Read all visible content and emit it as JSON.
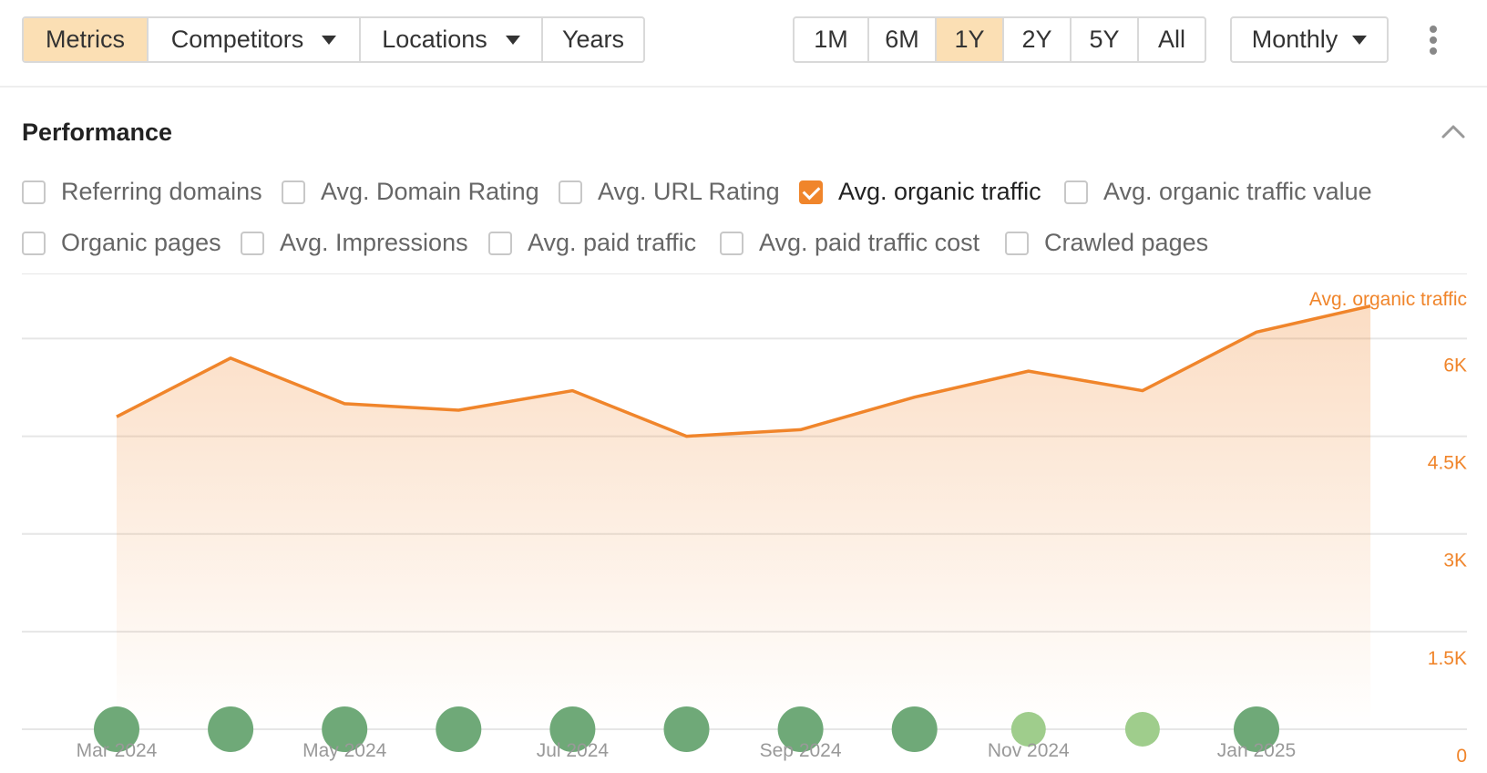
{
  "toolbar": {
    "left_group": [
      {
        "label": "Metrics",
        "active": true
      },
      {
        "label": "Competitors",
        "dropdown": true
      },
      {
        "label": "Locations",
        "dropdown": true
      },
      {
        "label": "Years"
      }
    ],
    "ranges": [
      "1M",
      "6M",
      "1Y",
      "2Y",
      "5Y",
      "All"
    ],
    "active_range": "1Y",
    "interval": "Monthly",
    "more_icon": "more-vertical-icon"
  },
  "section": {
    "title": "Performance",
    "collapse_icon": "chevron-up-icon"
  },
  "metrics": {
    "row1": [
      {
        "label": "Referring domains",
        "checked": false
      },
      {
        "label": "Avg. Domain Rating",
        "checked": false
      },
      {
        "label": "Avg. URL Rating",
        "checked": false
      },
      {
        "label": "Avg. organic traffic",
        "checked": true
      },
      {
        "label": "Avg. organic traffic value",
        "checked": false
      }
    ],
    "row2": [
      {
        "label": "Organic pages",
        "checked": false
      },
      {
        "label": "Avg. Impressions",
        "checked": false
      },
      {
        "label": "Avg. paid traffic",
        "checked": false
      },
      {
        "label": "Avg. paid traffic cost",
        "checked": false
      },
      {
        "label": "Crawled pages",
        "checked": false
      }
    ]
  },
  "colors": {
    "accent": "#f0852b",
    "active_button": "#fbdfb4",
    "dot_dark": "#6fa978",
    "dot_light": "#9fcd8c",
    "grid": "#e6e6e6"
  },
  "chart_data": {
    "type": "area",
    "series": [
      {
        "name": "Avg. organic traffic",
        "values": [
          4800,
          5700,
          5000,
          4900,
          5200,
          4500,
          4600,
          5100,
          5500,
          5200,
          6100,
          6500
        ]
      }
    ],
    "x_labels": [
      "Mar 2024",
      "May 2024",
      "Jul 2024",
      "Sep 2024",
      "Nov 2024",
      "Jan 2025"
    ],
    "y_axis_title": "Avg. organic traffic",
    "y_ticks": [
      "0",
      "1.5K",
      "3K",
      "4.5K",
      "6K"
    ],
    "ylim": [
      0,
      7000
    ],
    "y_axis_position": "right",
    "grid": true,
    "annotation_dots": [
      {
        "month": 0,
        "shade": "dark",
        "size": "large"
      },
      {
        "month": 1,
        "shade": "dark",
        "size": "large"
      },
      {
        "month": 2,
        "shade": "dark",
        "size": "large"
      },
      {
        "month": 3,
        "shade": "dark",
        "size": "large"
      },
      {
        "month": 4,
        "shade": "dark",
        "size": "large"
      },
      {
        "month": 5,
        "shade": "dark",
        "size": "large"
      },
      {
        "month": 6,
        "shade": "dark",
        "size": "large"
      },
      {
        "month": 7,
        "shade": "dark",
        "size": "large"
      },
      {
        "month": 8,
        "shade": "light",
        "size": "small"
      },
      {
        "month": 9,
        "shade": "light",
        "size": "small"
      },
      {
        "month": 10,
        "shade": "dark",
        "size": "large"
      }
    ]
  }
}
